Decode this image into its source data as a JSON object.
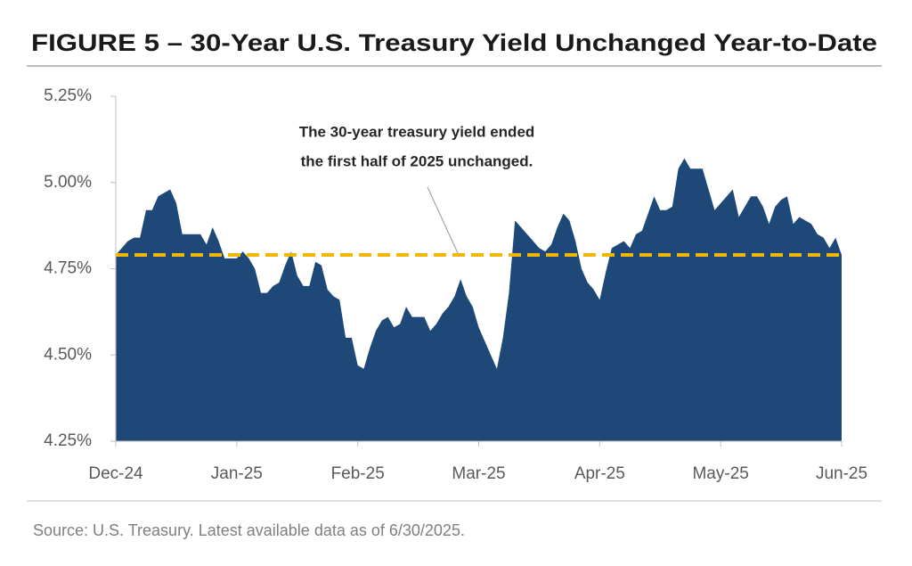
{
  "chart_data": {
    "type": "area",
    "title": "FIGURE 5 – 30-Year U.S. Treasury Yield Unchanged Year-to-Date",
    "categories": [
      "Dec-24",
      null,
      null,
      null,
      null,
      null,
      null,
      null,
      null,
      null,
      null,
      null,
      null,
      null,
      null,
      null,
      null,
      null,
      null,
      null,
      "Jan-25",
      null,
      null,
      null,
      null,
      null,
      null,
      null,
      null,
      null,
      null,
      null,
      null,
      null,
      null,
      null,
      null,
      null,
      null,
      null,
      "Feb-25",
      null,
      null,
      null,
      null,
      null,
      null,
      null,
      null,
      null,
      null,
      null,
      null,
      null,
      null,
      null,
      null,
      null,
      null,
      null,
      "Mar-25",
      null,
      null,
      null,
      null,
      null,
      null,
      null,
      null,
      null,
      null,
      null,
      null,
      null,
      null,
      null,
      null,
      null,
      null,
      null,
      "Apr-25",
      null,
      null,
      null,
      null,
      null,
      null,
      null,
      null,
      null,
      null,
      null,
      null,
      null,
      null,
      null,
      null,
      null,
      null,
      null,
      "May-25",
      null,
      null,
      null,
      null,
      null,
      null,
      null,
      null,
      null,
      null,
      null,
      null,
      null,
      null,
      null,
      null,
      null,
      null,
      null,
      "Jun-25"
    ],
    "values": [
      4.79,
      4.81,
      4.83,
      4.84,
      4.84,
      4.92,
      4.92,
      4.96,
      4.97,
      4.98,
      4.94,
      4.85,
      4.85,
      4.85,
      4.85,
      4.82,
      4.87,
      4.83,
      4.78,
      4.78,
      4.78,
      4.8,
      4.78,
      4.75,
      4.68,
      4.68,
      4.7,
      4.71,
      4.76,
      4.8,
      4.73,
      4.7,
      4.7,
      4.77,
      4.76,
      4.69,
      4.67,
      4.66,
      4.55,
      4.55,
      4.47,
      4.46,
      4.52,
      4.57,
      4.6,
      4.61,
      4.58,
      4.59,
      4.64,
      4.61,
      4.61,
      4.61,
      4.57,
      4.59,
      4.62,
      4.64,
      4.67,
      4.72,
      4.67,
      4.64,
      4.58,
      4.54,
      4.5,
      4.46,
      4.55,
      4.68,
      4.89,
      4.87,
      4.85,
      4.83,
      4.81,
      4.8,
      4.82,
      4.87,
      4.91,
      4.89,
      4.83,
      4.75,
      4.71,
      4.69,
      4.66,
      4.74,
      4.81,
      4.82,
      4.83,
      4.81,
      4.85,
      4.86,
      4.91,
      4.96,
      4.92,
      4.92,
      4.93,
      5.04,
      5.07,
      5.04,
      5.04,
      5.04,
      4.98,
      4.92,
      4.94,
      4.96,
      4.98,
      4.9,
      4.93,
      4.96,
      4.96,
      4.93,
      4.88,
      4.93,
      4.95,
      4.96,
      4.88,
      4.9,
      4.89,
      4.88,
      4.85,
      4.84,
      4.81,
      4.84,
      4.79
    ],
    "color": "#1d4877",
    "ylim": [
      4.25,
      5.25
    ],
    "yticks": [
      {
        "value": 4.25,
        "label": "4.25%"
      },
      {
        "value": 4.5,
        "label": "4.50%"
      },
      {
        "value": 4.75,
        "label": "4.75%"
      },
      {
        "value": 5.0,
        "label": "5.00%"
      },
      {
        "value": 5.25,
        "label": "5.25%"
      }
    ],
    "reference_line": {
      "value": 4.79,
      "color": "#f2b705"
    },
    "annotation": [
      "The 30-year treasury yield ended",
      "the first half of 2025 unchanged."
    ],
    "source": "Source: U.S. Treasury. Latest available data as of 6/30/2025."
  }
}
